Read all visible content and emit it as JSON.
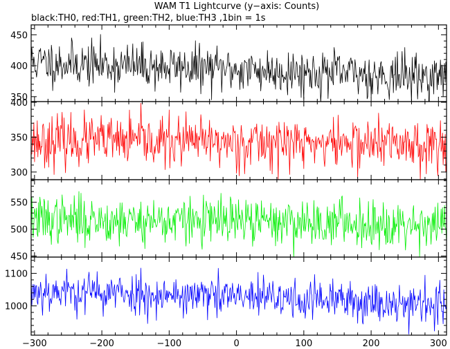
{
  "chart_data": {
    "type": "line",
    "title": "WAM T1 Lightcurve (y−axis: Counts)",
    "subtitle": "black:TH0, red:TH1, green:TH2, blue:TH3 ,1bin = 1s",
    "xlim": [
      -305,
      312
    ],
    "x_ticks": [
      -300,
      -200,
      -100,
      0,
      100,
      200,
      300
    ],
    "x_tick_labels": [
      "−300",
      "−200",
      "−100",
      "0",
      "100",
      "200",
      "300"
    ],
    "x_step": 1,
    "panels": [
      {
        "series_id": "TH0",
        "color": "#000000",
        "ylim": [
          342,
          466
        ],
        "y_ticks": [
          350,
          400,
          450
        ],
        "y_tick_labels": [
          "350",
          "400",
          "450"
        ],
        "mean_start": 406,
        "mean_end": 381,
        "noise_sd": 18,
        "seed": 11
      },
      {
        "series_id": "TH1",
        "color": "#ff0000",
        "ylim": [
          289,
          401
        ],
        "y_ticks": [
          300,
          350,
          400
        ],
        "y_tick_labels": [
          "300",
          "350",
          "400"
        ],
        "mean_start": 345,
        "mean_end": 340,
        "noise_sd": 18,
        "seed": 23
      },
      {
        "series_id": "TH2",
        "color": "#00ee00",
        "ylim": [
          448,
          592
        ],
        "y_ticks": [
          450,
          500,
          550
        ],
        "y_tick_labels": [
          "450",
          "500",
          "550"
        ],
        "mean_start": 518,
        "mean_end": 510,
        "noise_sd": 22,
        "seed": 37
      },
      {
        "series_id": "TH3",
        "color": "#0000ff",
        "ylim": [
          910,
          1150
        ],
        "y_ticks": [
          1000,
          1100
        ],
        "y_tick_labels": [
          "1000",
          "1100"
        ],
        "mean_start": 1048,
        "mean_end": 1005,
        "noise_sd": 32,
        "seed": 53
      }
    ],
    "grid": false,
    "legend": "none"
  }
}
